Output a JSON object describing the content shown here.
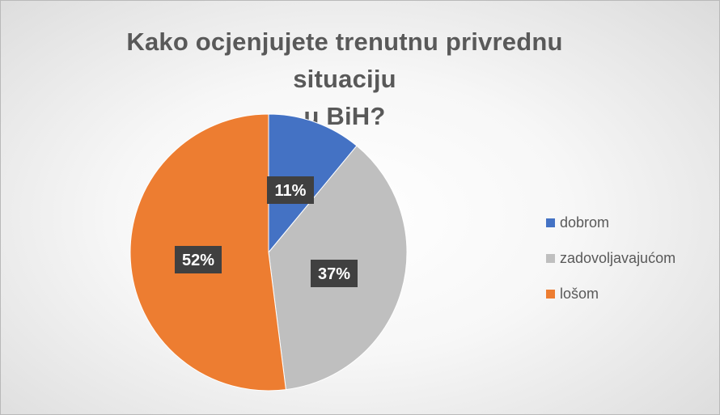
{
  "chart_data": {
    "type": "pie",
    "title": "Kako ocjenjujete trenutnu privrednu situaciju u BiH?",
    "title_lines": [
      "Kako ocjenjujete trenutnu privrednu situaciju",
      "u BiH?"
    ],
    "categories": [
      "dobrom",
      "zadovoljavajućom",
      "lošom"
    ],
    "values": [
      11,
      37,
      52
    ],
    "data_labels": [
      "11%",
      "37%",
      "52%"
    ],
    "colors": [
      "#4472c4",
      "#bfbfbf",
      "#ed7d31"
    ],
    "legend_position": "right",
    "start_angle_deg": 0,
    "direction": "clockwise"
  }
}
